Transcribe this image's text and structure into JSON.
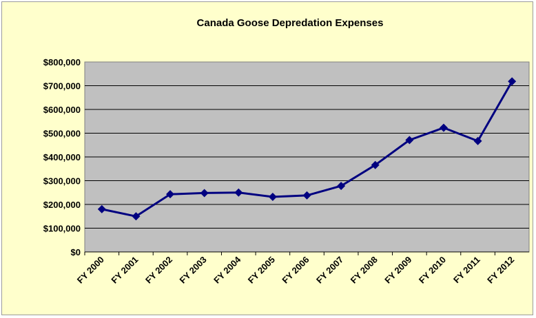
{
  "chart_data": {
    "type": "line",
    "title": "Canada Goose Depredation Expenses",
    "xlabel": "",
    "ylabel": "",
    "categories": [
      "FY 2000",
      "FY 2001",
      "FY 2002",
      "FY 2003",
      "FY 2004",
      "FY 2005",
      "FY 2006",
      "FY 2007",
      "FY 2008",
      "FY 2009",
      "FY 2010",
      "FY 2011",
      "FY 2012"
    ],
    "series": [
      {
        "values": [
          180000,
          150000,
          243000,
          248000,
          250000,
          232000,
          238000,
          278000,
          366000,
          471000,
          523000,
          467000,
          718000
        ]
      }
    ],
    "ylim": [
      0,
      800000
    ],
    "yticks": [
      "$0",
      "$100,000",
      "$200,000",
      "$300,000",
      "$400,000",
      "$500,000",
      "$600,000",
      "$700,000",
      "$800,000"
    ],
    "grid": true,
    "legend": "none",
    "colors": {
      "background": "#FFFFCC",
      "plot_area": "#C0C0C0",
      "line": "#000080",
      "gridline": "#000000"
    }
  }
}
